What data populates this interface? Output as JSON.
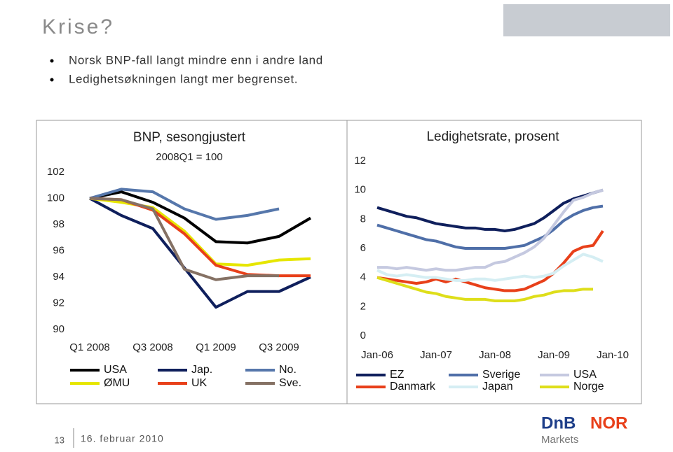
{
  "title": "Krise?",
  "bullets": [
    "Norsk BNP-fall langt mindre enn i andre land",
    "Ledighetsøkningen langt mer begrenset."
  ],
  "footer": {
    "page": 13,
    "date": "16. februar 2010"
  },
  "logo": {
    "parts": [
      "DnB",
      "NOR"
    ],
    "sub": "Markets"
  },
  "chart_data": [
    {
      "type": "line",
      "title": "BNP, sesongjustert",
      "subtitle": "2008Q1 = 100",
      "categories": [
        "Q1 2008",
        null,
        "Q3 2008",
        null,
        "Q1 2009",
        null,
        "Q3 2009",
        null
      ],
      "ylim": [
        90,
        102
      ],
      "yticks": [
        90,
        92,
        94,
        96,
        98,
        100,
        102
      ],
      "series": [
        {
          "name": "USA",
          "color": "#000000",
          "values": [
            100,
            100.5,
            99.7,
            98.5,
            96.7,
            96.6,
            97.1,
            98.5
          ]
        },
        {
          "name": "Jap.",
          "color": "#0f1f5c",
          "values": [
            100,
            98.7,
            97.7,
            94.7,
            91.7,
            92.9,
            92.9,
            94.0
          ]
        },
        {
          "name": "No.",
          "color": "#5677ab",
          "values": [
            100,
            100.7,
            100.5,
            99.2,
            98.4,
            98.7,
            99.2,
            null
          ]
        },
        {
          "name": "ØMU",
          "color": "#e6e600",
          "values": [
            100,
            99.7,
            99.3,
            97.5,
            95.0,
            94.9,
            95.3,
            95.4
          ]
        },
        {
          "name": "UK",
          "color": "#e8401a",
          "values": [
            100,
            99.9,
            99.1,
            97.3,
            94.9,
            94.2,
            94.1,
            94.1
          ]
        },
        {
          "name": "Sve.",
          "color": "#857164",
          "values": [
            100,
            99.9,
            99.2,
            94.6,
            93.8,
            94.1,
            94.1,
            null
          ]
        }
      ]
    },
    {
      "type": "line",
      "title": "Ledighetsrate, prosent",
      "categories": [
        "Jan-06",
        null,
        null,
        null,
        null,
        null,
        "Jan-07",
        null,
        null,
        null,
        null,
        null,
        "Jan-08",
        null,
        null,
        null,
        null,
        null,
        "Jan-09",
        null,
        null,
        null,
        null,
        null,
        "Jan-10"
      ],
      "ylim": [
        0,
        12
      ],
      "yticks": [
        0,
        2,
        4,
        6,
        8,
        10,
        12
      ],
      "series": [
        {
          "name": "EZ",
          "color": "#0f1f5c",
          "values": [
            8.8,
            8.6,
            8.4,
            8.2,
            8.1,
            7.9,
            7.7,
            7.6,
            7.5,
            7.4,
            7.4,
            7.3,
            7.3,
            7.2,
            7.3,
            7.5,
            7.7,
            8.1,
            8.6,
            9.1,
            9.4,
            9.6,
            9.8,
            10.0,
            null
          ]
        },
        {
          "name": "Sverige",
          "color": "#4f6fa8",
          "values": [
            7.6,
            7.4,
            7.2,
            7.0,
            6.8,
            6.6,
            6.5,
            6.3,
            6.1,
            6.0,
            6.0,
            6.0,
            6.0,
            6.0,
            6.1,
            6.2,
            6.5,
            6.8,
            7.3,
            7.9,
            8.3,
            8.6,
            8.8,
            8.9,
            null
          ]
        },
        {
          "name": "USA",
          "color": "#c5c9e0",
          "values": [
            4.7,
            4.7,
            4.6,
            4.7,
            4.6,
            4.5,
            4.6,
            4.5,
            4.5,
            4.6,
            4.7,
            4.7,
            5.0,
            5.1,
            5.4,
            5.7,
            6.1,
            6.7,
            7.6,
            8.5,
            9.3,
            9.5,
            9.8,
            10.0,
            null
          ]
        },
        {
          "name": "Danmark",
          "color": "#e8401a",
          "values": [
            4.0,
            3.9,
            3.8,
            3.7,
            3.6,
            3.7,
            3.9,
            3.7,
            3.9,
            3.7,
            3.5,
            3.3,
            3.2,
            3.1,
            3.1,
            3.2,
            3.5,
            3.8,
            4.3,
            5.0,
            5.8,
            6.1,
            6.2,
            7.2,
            null
          ]
        },
        {
          "name": "Japan",
          "color": "#d5eef3",
          "values": [
            4.5,
            4.2,
            4.1,
            4.2,
            4.1,
            4.0,
            4.0,
            3.9,
            3.8,
            3.8,
            3.9,
            3.9,
            3.8,
            3.9,
            4.0,
            4.1,
            4.0,
            4.1,
            4.3,
            4.8,
            5.2,
            5.6,
            5.4,
            5.1,
            null
          ]
        },
        {
          "name": "Norge",
          "color": "#dede1a",
          "values": [
            4.0,
            3.8,
            3.6,
            3.4,
            3.2,
            3.0,
            2.9,
            2.7,
            2.6,
            2.5,
            2.5,
            2.5,
            2.4,
            2.4,
            2.4,
            2.5,
            2.7,
            2.8,
            3.0,
            3.1,
            3.1,
            3.2,
            3.2,
            null,
            null
          ]
        }
      ]
    }
  ]
}
